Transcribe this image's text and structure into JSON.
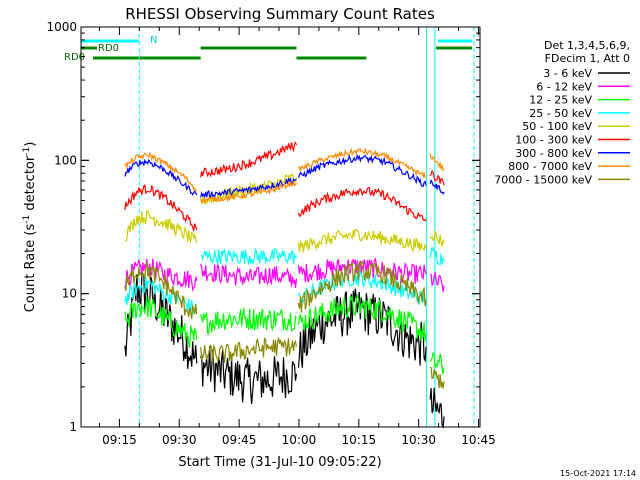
{
  "chart_data": {
    "type": "line",
    "title": "RHESSI Observing Summary Count Rates",
    "xlabel": "Start Time (31-Jul-10 09:05:22)",
    "ylabel_main": "Count Rate (s",
    "ylabel_sup1": "-1",
    "ylabel_mid": " detector",
    "ylabel_sup2": "-1",
    "ylabel_end": ")",
    "yscale": "log",
    "ylim": [
      1,
      1000
    ],
    "xlim_minutes": [
      0,
      100
    ],
    "x_ticks": [
      {
        "m": 9.63,
        "label": "09:15"
      },
      {
        "m": 24.63,
        "label": "09:30"
      },
      {
        "m": 39.63,
        "label": "09:45"
      },
      {
        "m": 54.63,
        "label": "10:00"
      },
      {
        "m": 69.63,
        "label": "10:15"
      },
      {
        "m": 84.63,
        "label": "10:30"
      },
      {
        "m": 99.63,
        "label": "10:45"
      }
    ],
    "y_ticks": [
      {
        "v": 1,
        "label": "1"
      },
      {
        "v": 10,
        "label": "10"
      },
      {
        "v": 100,
        "label": "100"
      },
      {
        "v": 1000,
        "label": "1000"
      }
    ],
    "legend_header": [
      "Det 1,3,4,5,6,9,",
      "FDecim 1, Att 0"
    ],
    "legend_position": "right",
    "flag_labels": {
      "n": "N",
      "rd0_top": "RD0",
      "rd0_bottom": "RD0"
    },
    "flag_bars": {
      "n": [
        [
          0,
          14.5
        ],
        [
          89.5,
          98
        ]
      ],
      "rd0_top": [
        [
          0,
          4
        ],
        [
          30,
          54
        ],
        [
          89,
          98
        ]
      ],
      "rd0_bottom": [
        [
          3,
          30
        ],
        [
          54,
          71.5
        ]
      ]
    },
    "orbit_segments": [
      [
        [
          11,
          14.3,
          6.0,
          19,
          22,
          24,
          26,
          28,
          29
        ],
        [
          30,
          35,
          40,
          45,
          50,
          54
        ]
      ],
      [
        [
          54.5,
          57,
          60,
          65,
          70,
          75,
          80,
          82,
          86.5
        ],
        [
          87.5,
          89,
          90,
          91
        ]
      ]
    ],
    "solid_vlines_min": [
      0,
      86.6,
      88.7
    ],
    "dashed_vlines_min": [
      14.6,
      98.5
    ],
    "series": [
      {
        "name": "3 - 6 keV",
        "color": "#000000",
        "segments": [
          [
            [
              11,
              3.6
            ],
            [
              14,
              11
            ],
            [
              17,
              10
            ],
            [
              21,
              7
            ],
            [
              26,
              4.5
            ],
            [
              29,
              3
            ]
          ],
          [
            [
              30,
              3
            ],
            [
              36,
              2.5
            ],
            [
              42,
              2.2
            ],
            [
              48,
              2.3
            ],
            [
              52,
              2.5
            ],
            [
              54,
              2.5
            ]
          ],
          [
            [
              54.5,
              3.5
            ],
            [
              60,
              6
            ],
            [
              66,
              7
            ],
            [
              70,
              7.5
            ],
            [
              76,
              6.5
            ],
            [
              82,
              4.5
            ],
            [
              86.5,
              4
            ]
          ],
          [
            [
              87.5,
              1.4
            ],
            [
              89.5,
              1.3
            ],
            [
              91,
              1.2
            ]
          ]
        ]
      },
      {
        "name": "6 - 12 keV",
        "color": "#ff00ff",
        "segments": [
          [
            [
              11,
              13
            ],
            [
              14,
              15
            ],
            [
              17,
              16
            ],
            [
              21,
              14
            ],
            [
              26,
              13
            ],
            [
              29,
              12.5
            ]
          ],
          [
            [
              30,
              15
            ],
            [
              36,
              14
            ],
            [
              42,
              13
            ],
            [
              48,
              14
            ],
            [
              52,
              13
            ],
            [
              54,
              13
            ]
          ],
          [
            [
              54.5,
              14
            ],
            [
              60,
              15
            ],
            [
              66,
              16
            ],
            [
              70,
              16
            ],
            [
              76,
              15
            ],
            [
              82,
              14
            ],
            [
              86.5,
              14
            ]
          ],
          [
            [
              87.5,
              13
            ],
            [
              89.5,
              12
            ],
            [
              91,
              11.5
            ]
          ]
        ]
      },
      {
        "name": "12 - 25 keV",
        "color": "#00ff00",
        "segments": [
          [
            [
              11,
              6
            ],
            [
              14,
              8
            ],
            [
              17,
              8
            ],
            [
              21,
              6.5
            ],
            [
              26,
              5
            ],
            [
              29,
              4.5
            ]
          ],
          [
            [
              30,
              6
            ],
            [
              36,
              6.5
            ],
            [
              42,
              6.5
            ],
            [
              48,
              6.5
            ],
            [
              52,
              6.5
            ],
            [
              54,
              6.5
            ]
          ],
          [
            [
              54.5,
              6
            ],
            [
              60,
              7
            ],
            [
              66,
              8
            ],
            [
              70,
              8
            ],
            [
              76,
              7.5
            ],
            [
              82,
              6
            ],
            [
              86.5,
              5
            ]
          ],
          [
            [
              87.5,
              3
            ],
            [
              89.5,
              3
            ],
            [
              91,
              2.8
            ]
          ]
        ]
      },
      {
        "name": "25 - 50 keV",
        "color": "#00ffff",
        "segments": [
          [
            [
              11,
              9
            ],
            [
              14,
              11
            ],
            [
              17,
              12
            ],
            [
              21,
              10
            ],
            [
              26,
              8.5
            ],
            [
              29,
              7.5
            ]
          ],
          [
            [
              30,
              19
            ],
            [
              36,
              19
            ],
            [
              42,
              19
            ],
            [
              48,
              19
            ],
            [
              52,
              19
            ],
            [
              54,
              19
            ]
          ],
          [
            [
              54.5,
              9
            ],
            [
              60,
              11
            ],
            [
              66,
              13
            ],
            [
              70,
              13
            ],
            [
              76,
              12
            ],
            [
              82,
              10
            ],
            [
              86.5,
              9
            ]
          ],
          [
            [
              87.5,
              20
            ],
            [
              89.5,
              19
            ],
            [
              91,
              18
            ]
          ]
        ]
      },
      {
        "name": "50 - 100 keV",
        "color": "#cccc00",
        "segments": [
          [
            [
              11,
              27
            ],
            [
              14,
              37
            ],
            [
              17,
              38
            ],
            [
              21,
              34
            ],
            [
              26,
              28
            ],
            [
              29,
              24
            ]
          ],
          [
            [
              30,
              50
            ],
            [
              36,
              55
            ],
            [
              42,
              60
            ],
            [
              48,
              65
            ],
            [
              52,
              72
            ],
            [
              54,
              74
            ]
          ],
          [
            [
              54.5,
              22
            ],
            [
              60,
              25
            ],
            [
              66,
              27
            ],
            [
              70,
              28
            ],
            [
              76,
              26
            ],
            [
              82,
              24
            ],
            [
              86.5,
              22
            ]
          ],
          [
            [
              87.5,
              29
            ],
            [
              89.5,
              26
            ],
            [
              91,
              24
            ]
          ]
        ]
      },
      {
        "name": "100 - 300 keV",
        "color": "#ff0000",
        "segments": [
          [
            [
              11,
              45
            ],
            [
              14,
              58
            ],
            [
              17,
              62
            ],
            [
              21,
              52
            ],
            [
              26,
              38
            ],
            [
              29,
              30
            ]
          ],
          [
            [
              30,
              80
            ],
            [
              36,
              85
            ],
            [
              42,
              95
            ],
            [
              48,
              110
            ],
            [
              52,
              125
            ],
            [
              54,
              130
            ]
          ],
          [
            [
              54.5,
              40
            ],
            [
              60,
              50
            ],
            [
              66,
              57
            ],
            [
              70,
              60
            ],
            [
              76,
              55
            ],
            [
              82,
              42
            ],
            [
              86.5,
              35
            ]
          ],
          [
            [
              87.5,
              80
            ],
            [
              89.5,
              72
            ],
            [
              91,
              65
            ]
          ]
        ]
      },
      {
        "name": "300 - 800 keV",
        "color": "#0000ff",
        "segments": [
          [
            [
              11,
              80
            ],
            [
              14,
              95
            ],
            [
              17,
              98
            ],
            [
              21,
              85
            ],
            [
              26,
              65
            ],
            [
              29,
              55
            ]
          ],
          [
            [
              30,
              55
            ],
            [
              36,
              57
            ],
            [
              42,
              60
            ],
            [
              48,
              65
            ],
            [
              52,
              70
            ],
            [
              54,
              72
            ]
          ],
          [
            [
              54.5,
              75
            ],
            [
              60,
              90
            ],
            [
              66,
              100
            ],
            [
              70,
              105
            ],
            [
              76,
              98
            ],
            [
              82,
              78
            ],
            [
              86.5,
              65
            ]
          ],
          [
            [
              87.5,
              70
            ],
            [
              89.5,
              62
            ],
            [
              91,
              58
            ]
          ]
        ]
      },
      {
        "name": "800 - 7000 keV",
        "color": "#ff8800",
        "segments": [
          [
            [
              11,
              90
            ],
            [
              14,
              105
            ],
            [
              17,
              110
            ],
            [
              21,
              95
            ],
            [
              26,
              75
            ],
            [
              29,
              60
            ]
          ],
          [
            [
              30,
              50
            ],
            [
              36,
              52
            ],
            [
              42,
              55
            ],
            [
              48,
              60
            ],
            [
              52,
              66
            ],
            [
              54,
              68
            ]
          ],
          [
            [
              54.5,
              85
            ],
            [
              60,
              100
            ],
            [
              66,
              112
            ],
            [
              70,
              118
            ],
            [
              76,
              108
            ],
            [
              82,
              88
            ],
            [
              86.5,
              75
            ]
          ],
          [
            [
              87.5,
              110
            ],
            [
              89.5,
              95
            ],
            [
              91,
              85
            ]
          ]
        ]
      },
      {
        "name": "7000 - 15000 keV",
        "color": "#888800",
        "segments": [
          [
            [
              11,
              11
            ],
            [
              14,
              15
            ],
            [
              17,
              15
            ],
            [
              21,
              12
            ],
            [
              26,
              8
            ],
            [
              29,
              7
            ]
          ],
          [
            [
              30,
              3.5
            ],
            [
              36,
              3.5
            ],
            [
              42,
              3.8
            ],
            [
              48,
              4
            ],
            [
              52,
              4
            ],
            [
              54,
              4
            ]
          ],
          [
            [
              54.5,
              8
            ],
            [
              60,
              11
            ],
            [
              66,
              14
            ],
            [
              70,
              15
            ],
            [
              76,
              14
            ],
            [
              82,
              11
            ],
            [
              86.5,
              9
            ]
          ],
          [
            [
              87.5,
              2.5
            ],
            [
              89.5,
              2.3
            ],
            [
              91,
              2.2
            ]
          ]
        ]
      }
    ],
    "timestamp": "15-Oct-2021 17:14"
  }
}
